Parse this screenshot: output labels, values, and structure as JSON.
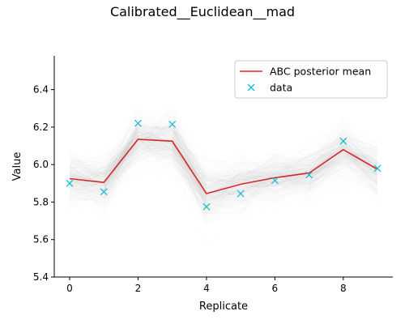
{
  "chart_data": {
    "type": "line",
    "title": "Calibrated__Euclidean__mad",
    "xlabel": "Replicate",
    "ylabel": "Value",
    "xlim": [
      -0.45,
      9.45
    ],
    "ylim": [
      5.4,
      6.58
    ],
    "xticks": [
      0,
      2,
      4,
      6,
      8
    ],
    "yticks": [
      5.4,
      5.6,
      5.8,
      6.0,
      6.2,
      6.4
    ],
    "grid": false,
    "legend_position": "top-right",
    "x": [
      0,
      1,
      2,
      3,
      4,
      5,
      6,
      7,
      8,
      9
    ],
    "series": [
      {
        "name": "ABC posterior mean",
        "style": "line",
        "color": "#d62728",
        "values": [
          5.925,
          5.905,
          6.135,
          6.125,
          5.845,
          5.895,
          5.93,
          5.955,
          6.08,
          5.975
        ]
      },
      {
        "name": "data",
        "style": "marker-x",
        "color": "#17becf",
        "values": [
          5.9,
          5.855,
          6.22,
          6.215,
          5.775,
          5.845,
          5.915,
          5.945,
          6.125,
          5.98
        ]
      }
    ],
    "posterior_samples_band": {
      "color": "#808080",
      "center": [
        5.925,
        5.905,
        6.135,
        6.125,
        5.845,
        5.895,
        5.93,
        5.955,
        6.08,
        5.975
      ],
      "spread_sd": [
        0.075,
        0.075,
        0.08,
        0.085,
        0.09,
        0.075,
        0.075,
        0.07,
        0.08,
        0.075
      ],
      "count": 350
    }
  }
}
